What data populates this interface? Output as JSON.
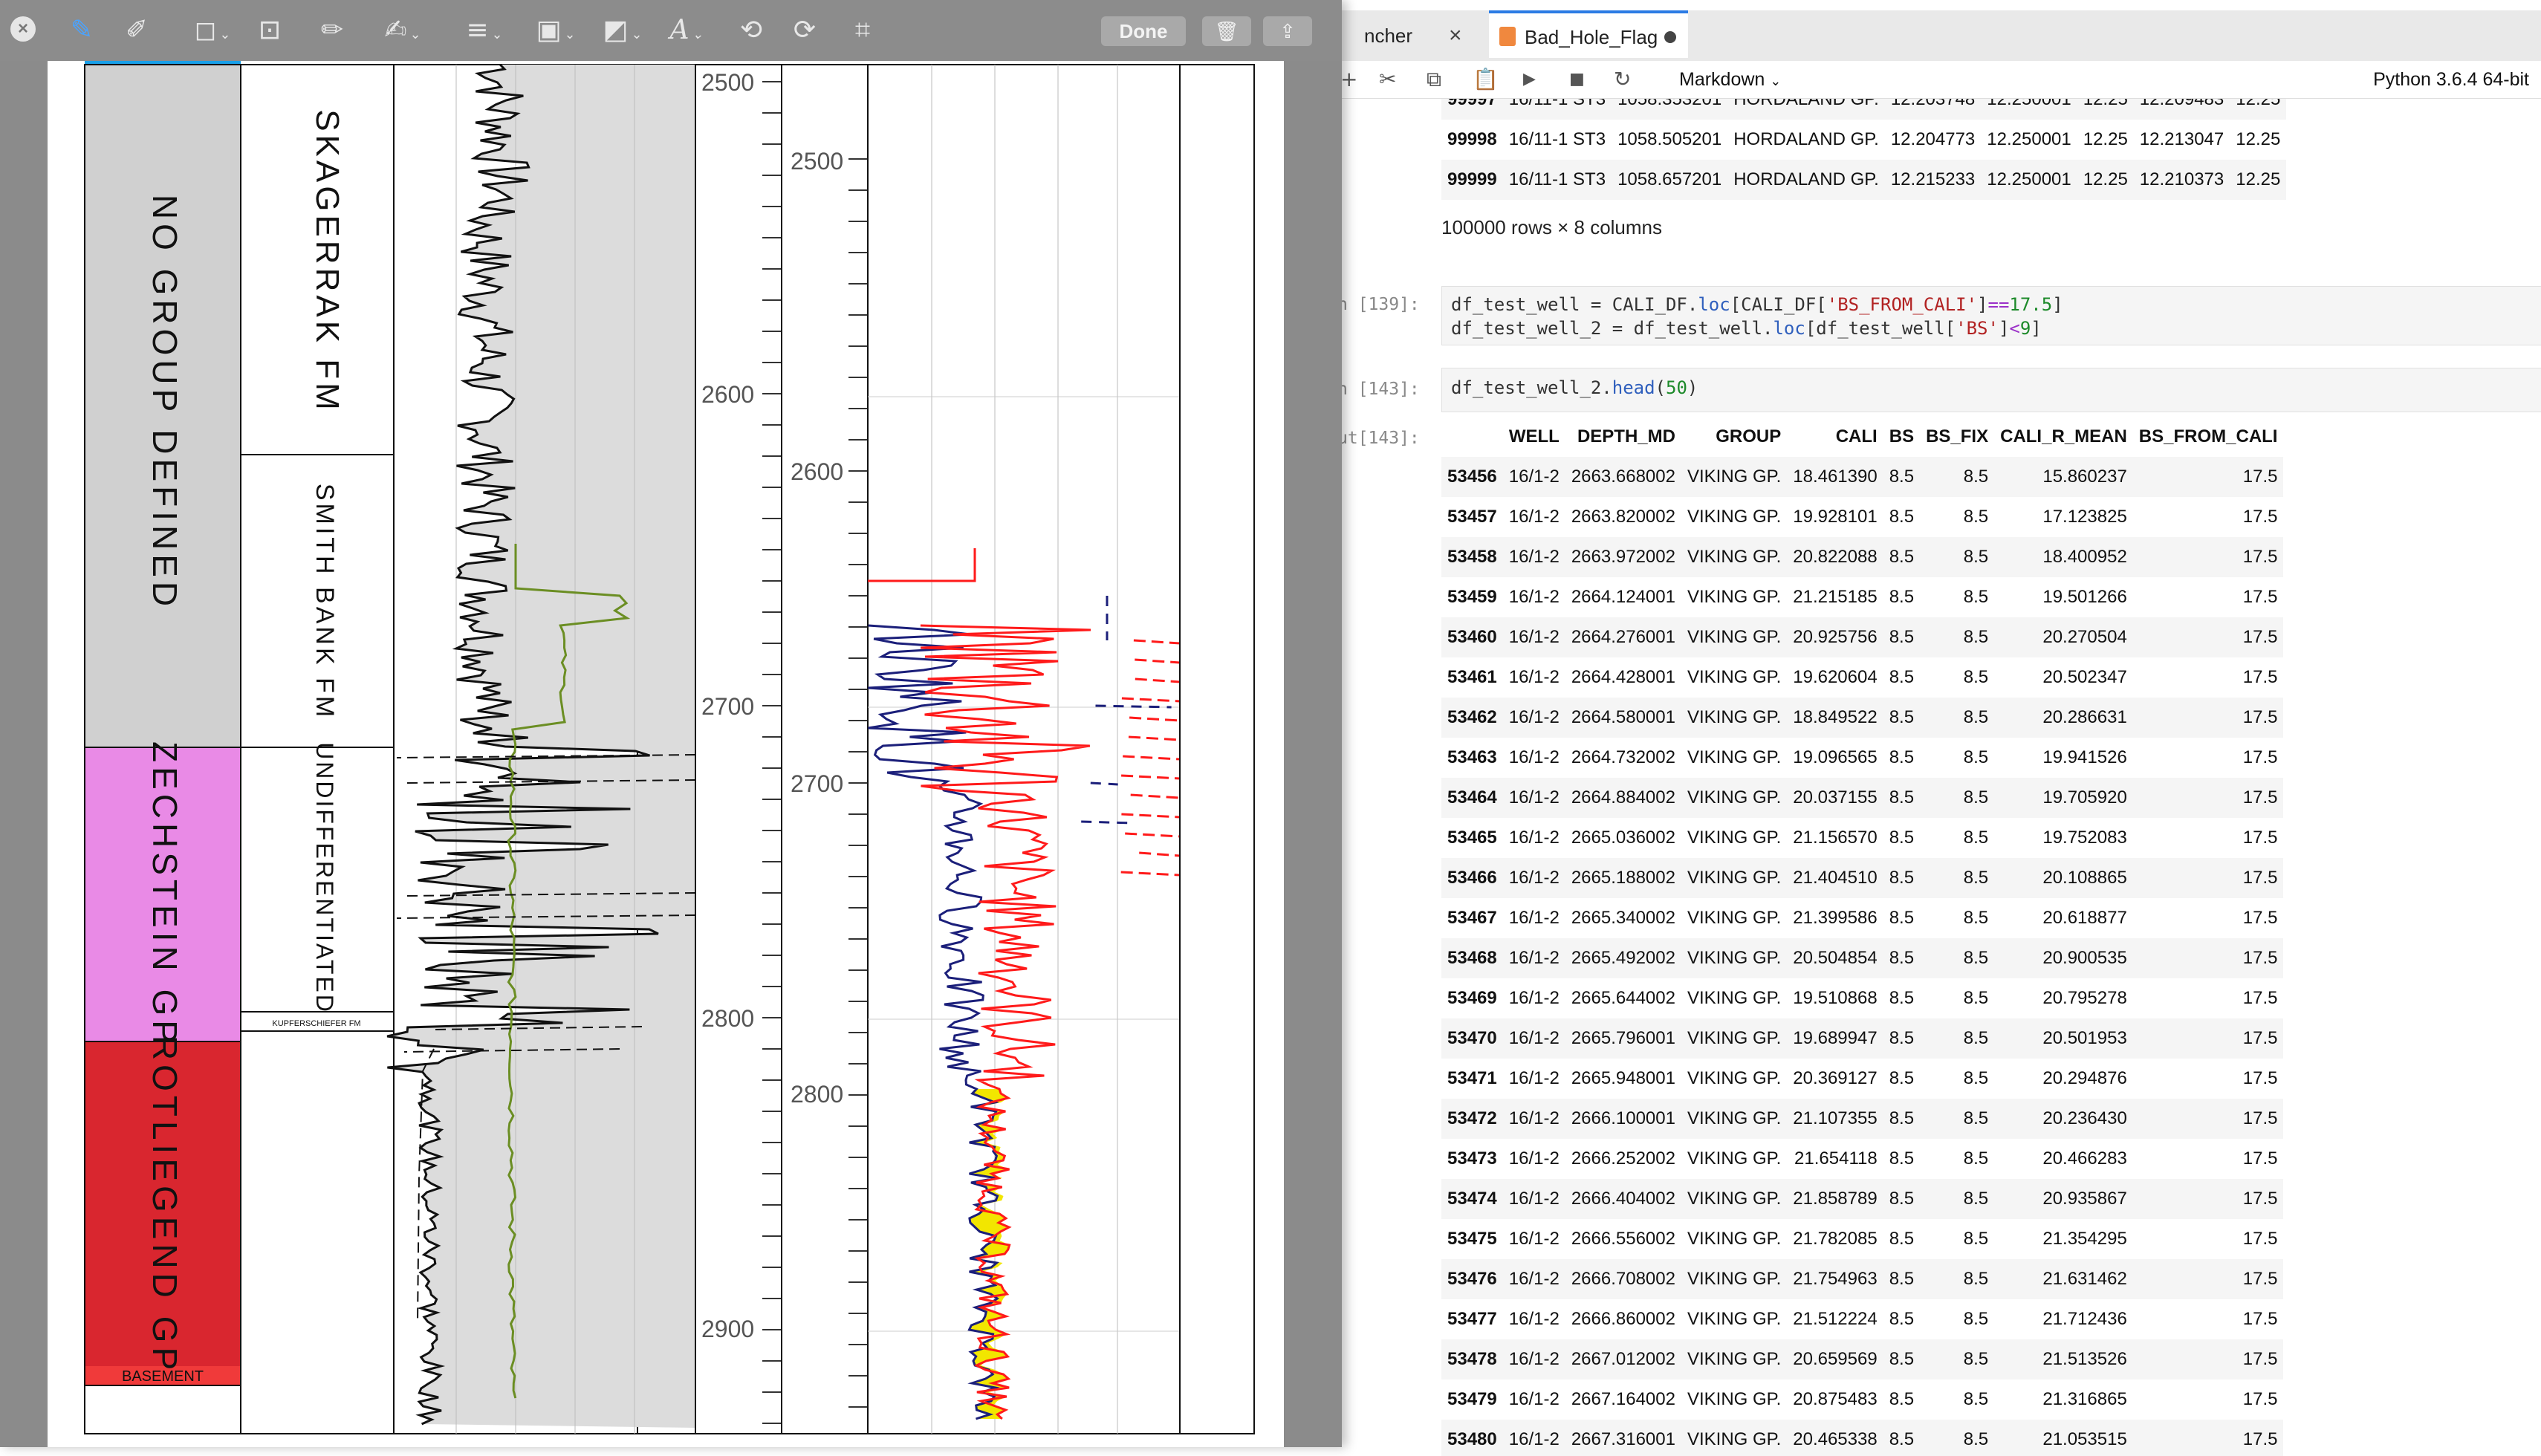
{
  "preview": {
    "done_label": "Done"
  },
  "strat": {
    "groups": [
      {
        "name": "NO GROUP DEFINED",
        "color": "#d0d0d0"
      },
      {
        "name": "ZECHSTEIN GP",
        "color": "#e98ae6"
      },
      {
        "name": "ROTLIEGEND GP",
        "color": "#d9262f"
      },
      {
        "name": "BASEMENT",
        "color": "#f03a3a"
      }
    ],
    "formations": [
      "SKAGERRAK FM",
      "SMITH BANK FM",
      "UNDIFFERENTIATED",
      "KUPFERSCHIEFER FM"
    ]
  },
  "depth_ticks_a": [
    "2500",
    "2600",
    "2700",
    "2800",
    "2900"
  ],
  "depth_ticks_b": [
    "2500",
    "2600",
    "2700",
    "2800"
  ],
  "jupyter": {
    "tabs": [
      "ncher",
      "Bad_Hole_Flag"
    ],
    "cell_type": "Markdown",
    "kernel": "Python 3.6.4 64-bit",
    "top_rows": [
      [
        "99997",
        "16/11-1 ST3",
        "1058.353201",
        "HORDALAND GP.",
        "12.203748",
        "12.250001",
        "12.25",
        "12.209483",
        "12.25"
      ],
      [
        "99998",
        "16/11-1 ST3",
        "1058.505201",
        "HORDALAND GP.",
        "12.204773",
        "12.250001",
        "12.25",
        "12.213047",
        "12.25"
      ],
      [
        "99999",
        "16/11-1 ST3",
        "1058.657201",
        "HORDALAND GP.",
        "12.215233",
        "12.250001",
        "12.25",
        "12.210373",
        "12.25"
      ]
    ],
    "rows_note": "100000 rows × 8 columns",
    "cell1_prompt": "n [139]:",
    "cell2_prompt": "n [143]:",
    "out_prompt": "ut[143]:",
    "columns": [
      "WELL",
      "DEPTH_MD",
      "GROUP",
      "CALI",
      "BS",
      "BS_FIX",
      "CALI_R_MEAN",
      "BS_FROM_CALI"
    ],
    "rows": [
      [
        "53456",
        "16/1-2",
        "2663.668002",
        "VIKING GP.",
        "18.461390",
        "8.5",
        "8.5",
        "15.860237",
        "17.5"
      ],
      [
        "53457",
        "16/1-2",
        "2663.820002",
        "VIKING GP.",
        "19.928101",
        "8.5",
        "8.5",
        "17.123825",
        "17.5"
      ],
      [
        "53458",
        "16/1-2",
        "2663.972002",
        "VIKING GP.",
        "20.822088",
        "8.5",
        "8.5",
        "18.400952",
        "17.5"
      ],
      [
        "53459",
        "16/1-2",
        "2664.124001",
        "VIKING GP.",
        "21.215185",
        "8.5",
        "8.5",
        "19.501266",
        "17.5"
      ],
      [
        "53460",
        "16/1-2",
        "2664.276001",
        "VIKING GP.",
        "20.925756",
        "8.5",
        "8.5",
        "20.270504",
        "17.5"
      ],
      [
        "53461",
        "16/1-2",
        "2664.428001",
        "VIKING GP.",
        "19.620604",
        "8.5",
        "8.5",
        "20.502347",
        "17.5"
      ],
      [
        "53462",
        "16/1-2",
        "2664.580001",
        "VIKING GP.",
        "18.849522",
        "8.5",
        "8.5",
        "20.286631",
        "17.5"
      ],
      [
        "53463",
        "16/1-2",
        "2664.732002",
        "VIKING GP.",
        "19.096565",
        "8.5",
        "8.5",
        "19.941526",
        "17.5"
      ],
      [
        "53464",
        "16/1-2",
        "2664.884002",
        "VIKING GP.",
        "20.037155",
        "8.5",
        "8.5",
        "19.705920",
        "17.5"
      ],
      [
        "53465",
        "16/1-2",
        "2665.036002",
        "VIKING GP.",
        "21.156570",
        "8.5",
        "8.5",
        "19.752083",
        "17.5"
      ],
      [
        "53466",
        "16/1-2",
        "2665.188002",
        "VIKING GP.",
        "21.404510",
        "8.5",
        "8.5",
        "20.108865",
        "17.5"
      ],
      [
        "53467",
        "16/1-2",
        "2665.340002",
        "VIKING GP.",
        "21.399586",
        "8.5",
        "8.5",
        "20.618877",
        "17.5"
      ],
      [
        "53468",
        "16/1-2",
        "2665.492002",
        "VIKING GP.",
        "20.504854",
        "8.5",
        "8.5",
        "20.900535",
        "17.5"
      ],
      [
        "53469",
        "16/1-2",
        "2665.644002",
        "VIKING GP.",
        "19.510868",
        "8.5",
        "8.5",
        "20.795278",
        "17.5"
      ],
      [
        "53470",
        "16/1-2",
        "2665.796001",
        "VIKING GP.",
        "19.689947",
        "8.5",
        "8.5",
        "20.501953",
        "17.5"
      ],
      [
        "53471",
        "16/1-2",
        "2665.948001",
        "VIKING GP.",
        "20.369127",
        "8.5",
        "8.5",
        "20.294876",
        "17.5"
      ],
      [
        "53472",
        "16/1-2",
        "2666.100001",
        "VIKING GP.",
        "21.107355",
        "8.5",
        "8.5",
        "20.236430",
        "17.5"
      ],
      [
        "53473",
        "16/1-2",
        "2666.252002",
        "VIKING GP.",
        "21.654118",
        "8.5",
        "8.5",
        "20.466283",
        "17.5"
      ],
      [
        "53474",
        "16/1-2",
        "2666.404002",
        "VIKING GP.",
        "21.858789",
        "8.5",
        "8.5",
        "20.935867",
        "17.5"
      ],
      [
        "53475",
        "16/1-2",
        "2666.556002",
        "VIKING GP.",
        "21.782085",
        "8.5",
        "8.5",
        "21.354295",
        "17.5"
      ],
      [
        "53476",
        "16/1-2",
        "2666.708002",
        "VIKING GP.",
        "21.754963",
        "8.5",
        "8.5",
        "21.631462",
        "17.5"
      ],
      [
        "53477",
        "16/1-2",
        "2666.860002",
        "VIKING GP.",
        "21.512224",
        "8.5",
        "8.5",
        "21.712436",
        "17.5"
      ],
      [
        "53478",
        "16/1-2",
        "2667.012002",
        "VIKING GP.",
        "20.659569",
        "8.5",
        "8.5",
        "21.513526",
        "17.5"
      ],
      [
        "53479",
        "16/1-2",
        "2667.164002",
        "VIKING GP.",
        "20.875483",
        "8.5",
        "8.5",
        "21.316865",
        "17.5"
      ],
      [
        "53480",
        "16/1-2",
        "2667.316001",
        "VIKING GP.",
        "20.465338",
        "8.5",
        "8.5",
        "21.053515",
        "17.5"
      ]
    ]
  }
}
